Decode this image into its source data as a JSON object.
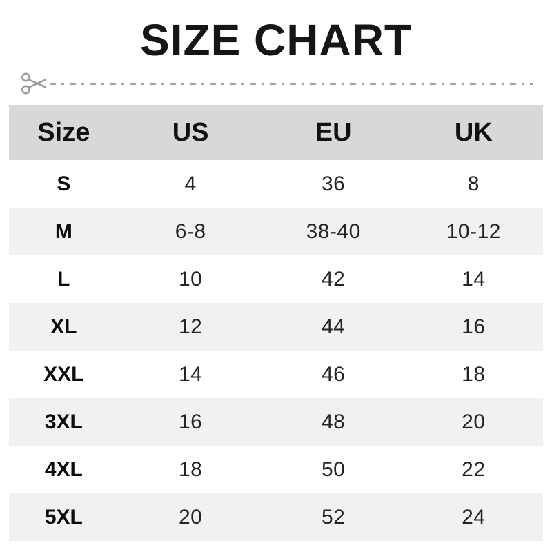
{
  "title": "SIZE CHART",
  "cutline": {
    "icon": "scissors-icon",
    "line_color": "#a3a3a3"
  },
  "colors": {
    "title_text": "#161616",
    "header_bg": "#d8d8d8",
    "alt_row_bg": "#f1f1f2",
    "label_text": "#0c0c0c",
    "value_text": "#242424",
    "background": "#ffffff"
  },
  "chart_data": {
    "type": "table",
    "title": "SIZE CHART",
    "headers": [
      "Size",
      "US",
      "EU",
      "UK"
    ],
    "rows": [
      [
        "S",
        "4",
        "36",
        "8"
      ],
      [
        "M",
        "6-8",
        "38-40",
        "10-12"
      ],
      [
        "L",
        "10",
        "42",
        "14"
      ],
      [
        "XL",
        "12",
        "44",
        "16"
      ],
      [
        "XXL",
        "14",
        "46",
        "18"
      ],
      [
        "3XL",
        "16",
        "48",
        "20"
      ],
      [
        "4XL",
        "18",
        "50",
        "22"
      ],
      [
        "5XL",
        "20",
        "52",
        "24"
      ]
    ],
    "layout": {
      "zebra_striping": true,
      "striped_rows": "even",
      "header_band": true,
      "grid_lines": false
    }
  }
}
